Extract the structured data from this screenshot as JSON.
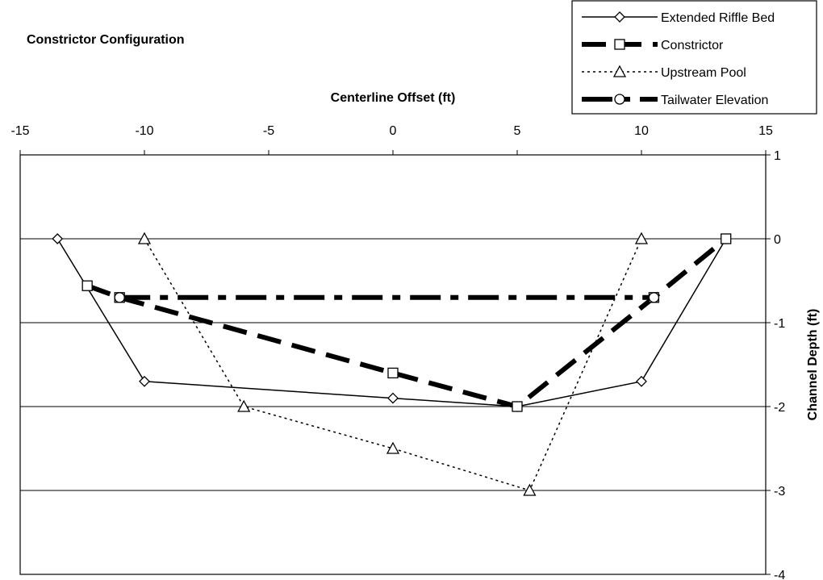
{
  "chart_data": {
    "type": "line",
    "title": "Constrictor Configuration",
    "xlabel": "Centerline Offset (ft)",
    "ylabel": "Channel Depth (ft)",
    "xlim": [
      -15,
      15
    ],
    "ylim": [
      -4,
      1
    ],
    "x_ticks": [
      "-15",
      "-10",
      "-5",
      "0",
      "5",
      "10",
      "15"
    ],
    "y_ticks": [
      "1",
      "0",
      "-1",
      "-2",
      "-3",
      "-4"
    ],
    "x_axis_position": "top",
    "y_axis_position": "right",
    "grid": "horizontal",
    "legend_position": "top-right",
    "series": [
      {
        "name": "Extended Riffle Bed",
        "style": "solid-thin",
        "marker": "diamond",
        "points": [
          [
            -13.5,
            0
          ],
          [
            -10,
            -1.7
          ],
          [
            0,
            -1.9
          ],
          [
            5,
            -2
          ],
          [
            10,
            -1.7
          ],
          [
            13.4,
            0
          ]
        ]
      },
      {
        "name": "Constrictor",
        "style": "dash-thick",
        "marker": "square",
        "points": [
          [
            -12.3,
            -0.56
          ],
          [
            -11,
            -0.7
          ],
          [
            0,
            -1.6
          ],
          [
            5,
            -2
          ],
          [
            10.5,
            -0.7
          ],
          [
            13.4,
            0
          ]
        ]
      },
      {
        "name": "Upstream Pool",
        "style": "dotted-thin",
        "marker": "triangle",
        "points": [
          [
            -10,
            0
          ],
          [
            -6,
            -2
          ],
          [
            0,
            -2.5
          ],
          [
            5.5,
            -3
          ],
          [
            10,
            0
          ]
        ]
      },
      {
        "name": "Tailwater Elevation",
        "style": "dashdot-thick",
        "marker": "circle",
        "points": [
          [
            -11,
            -0.7
          ],
          [
            10.5,
            -0.7
          ]
        ]
      }
    ]
  }
}
